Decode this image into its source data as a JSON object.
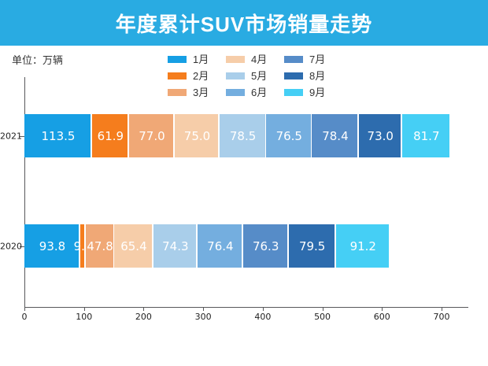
{
  "title": "年度累计SUV市场销量走势",
  "unit_label": "单位：万辆",
  "colors": {
    "banner": "#29abe2",
    "axis": "#58595b",
    "text": "#333333",
    "bar_value_text": "#ffffff"
  },
  "chart_data": {
    "type": "bar",
    "orientation": "horizontal_stacked",
    "title": "年度累计SUV市场销量走势",
    "unit": "万辆",
    "categories": [
      "2021",
      "2020"
    ],
    "series": [
      {
        "name": "1月",
        "color": "#169fe4",
        "values": [
          113.5,
          93.8
        ]
      },
      {
        "name": "2月",
        "color": "#f57d1d",
        "values": [
          61.9,
          9.2
        ]
      },
      {
        "name": "3月",
        "color": "#f0a876",
        "values": [
          77.0,
          47.8
        ]
      },
      {
        "name": "4月",
        "color": "#f6cda9",
        "values": [
          75.0,
          65.4
        ]
      },
      {
        "name": "5月",
        "color": "#a9ceea",
        "values": [
          78.5,
          74.3
        ]
      },
      {
        "name": "6月",
        "color": "#74aedf",
        "values": [
          76.5,
          76.4
        ]
      },
      {
        "name": "7月",
        "color": "#568cc8",
        "values": [
          78.4,
          76.3
        ]
      },
      {
        "name": "8月",
        "color": "#2d6cae",
        "values": [
          73.0,
          79.5
        ]
      },
      {
        "name": "9月",
        "color": "#45cff5",
        "values": [
          81.7,
          91.2
        ]
      }
    ],
    "totals": [
      715.5,
      613.9
    ],
    "xticks": [
      0,
      100,
      200,
      300,
      400,
      500,
      600,
      700
    ],
    "xlim": [
      0,
      746
    ],
    "grid": false,
    "legend_position": "top-center",
    "value_label_format": "one_decimal"
  }
}
